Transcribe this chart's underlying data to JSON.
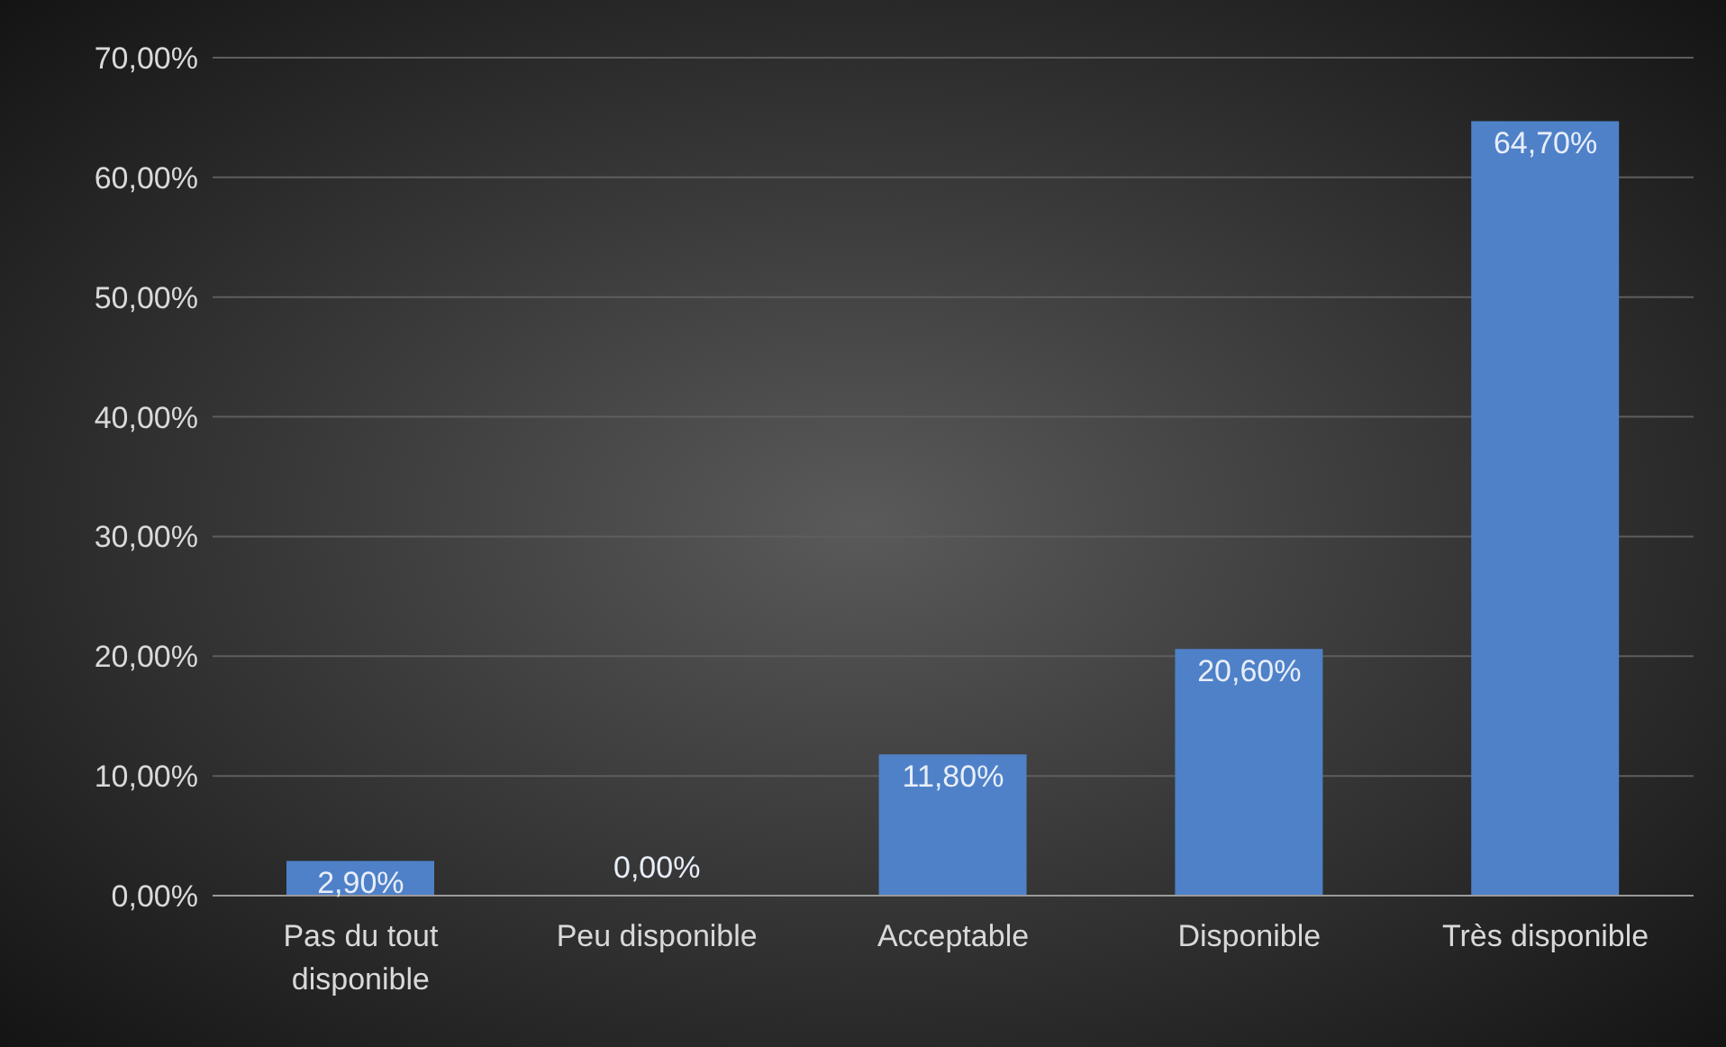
{
  "chart_data": {
    "type": "bar",
    "categories": [
      "Pas du tout disponible",
      "Peu disponible",
      "Acceptable",
      "Disponible",
      "Très disponible"
    ],
    "values": [
      2.9,
      0,
      11.8,
      20.6,
      64.7
    ],
    "value_labels": [
      "2,90%",
      "0,00%",
      "11,80%",
      "20,60%",
      "64,70%"
    ],
    "color": "#4f81c9",
    "ylim": [
      0,
      70
    ],
    "yticks": [
      {
        "value": 0,
        "label": "0,00%"
      },
      {
        "value": 10,
        "label": "10,00%"
      },
      {
        "value": 20,
        "label": "20,00%"
      },
      {
        "value": 30,
        "label": "30,00%"
      },
      {
        "value": 40,
        "label": "40,00%"
      },
      {
        "value": 50,
        "label": "50,00%"
      },
      {
        "value": 60,
        "label": "60,00%"
      },
      {
        "value": 70,
        "label": "70,00%"
      }
    ],
    "grid": "y",
    "legend": false
  }
}
